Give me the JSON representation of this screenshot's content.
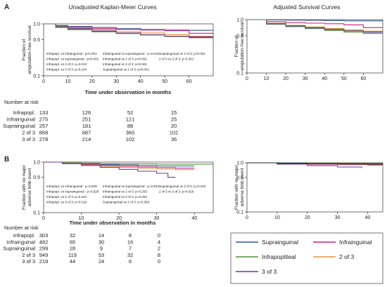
{
  "chart_data": [
    {
      "panel": "A",
      "type": "line",
      "title": "Unadjusted Kaplan-Meier Curves",
      "xlabel": "Time under observation in months",
      "ylabel": "Fraction of amputation-free survival",
      "xlim": [
        0,
        70
      ],
      "ylim": [
        0.1,
        1.0
      ],
      "yscale": "log",
      "xticks": [
        "0",
        "10",
        "20",
        "30",
        "40",
        "50",
        "60"
      ],
      "yticks": [
        "1.0",
        "0.5",
        "0.1"
      ],
      "series": [
        {
          "name": "Suprainguinal",
          "color": "#2f5597",
          "x": [
            0,
            5,
            10,
            20,
            30,
            40,
            50,
            60,
            70
          ],
          "y": [
            1.0,
            0.93,
            0.89,
            0.85,
            0.81,
            0.78,
            0.76,
            0.75,
            0.75
          ]
        },
        {
          "name": "Infrainguinal",
          "color": "#d0217a",
          "x": [
            0,
            5,
            10,
            20,
            30,
            40,
            50,
            60,
            70
          ],
          "y": [
            1.0,
            0.91,
            0.86,
            0.81,
            0.78,
            0.76,
            0.74,
            0.66,
            0.66
          ]
        },
        {
          "name": "Infrapopliteal",
          "color": "#4f8f3a",
          "x": [
            0,
            5,
            10,
            20,
            30,
            40,
            50,
            60,
            70
          ],
          "y": [
            1.0,
            0.85,
            0.77,
            0.7,
            0.65,
            0.61,
            0.58,
            0.55,
            0.55
          ]
        },
        {
          "name": "2 of 3",
          "color": "#e69138",
          "x": [
            0,
            5,
            10,
            20,
            30,
            40,
            50,
            60,
            70
          ],
          "y": [
            1.0,
            0.9,
            0.84,
            0.77,
            0.71,
            0.67,
            0.62,
            0.58,
            0.58
          ]
        },
        {
          "name": "3 of 3",
          "color": "#7030a0",
          "x": [
            0,
            5,
            10,
            20,
            30,
            40,
            50,
            60,
            70
          ],
          "y": [
            1.0,
            0.89,
            0.82,
            0.73,
            0.67,
            0.62,
            0.58,
            0.56,
            0.56
          ]
        },
        {
          "name": "",
          "color": "#666666",
          "x": [
            0,
            5,
            10,
            20,
            30,
            40,
            50,
            60,
            70
          ],
          "y": [
            1.0,
            0.88,
            0.8,
            0.72,
            0.66,
            0.61,
            0.57,
            0.54,
            0.52
          ]
        }
      ],
      "annotations": [
        "Infrapopl. vs infrainguinal : p<0.001",
        "Infrainguinal vs suprainguinal : p=0.010",
        "Suprainguinal vs 3 of 3: p<0.001",
        "Infrapopl. vs suprainguinal : p<0.001",
        "Infrainguinal vs 2 of 3: p<0.001",
        "2 of 3 vs 3 of 3: p=0.341",
        "Infrapopl. vs 2 of 3: p=0.013",
        "Infrainguinal vs 3 of 3: p<0.001",
        "Infrapopl. vs 3 of 3: p=0.244",
        "Suprainguinal vs 2 of 3: p<0.001"
      ],
      "at_risk": {
        "header": "Number at risk",
        "rows": [
          {
            "label": "Infrapopl.",
            "values": [
              "133",
              "126",
              "52",
              "15"
            ]
          },
          {
            "label": "Infrainguinal",
            "values": [
              "275",
              "251",
              "121",
              "25"
            ]
          },
          {
            "label": "Suprainguinal",
            "values": [
              "257",
              "181",
              "88",
              "20"
            ]
          },
          {
            "label": "2 of 3",
            "values": [
              "868",
              "687",
              "360",
              "102"
            ]
          },
          {
            "label": "3 of 3",
            "values": [
              "278",
              "214",
              "102",
              "36"
            ]
          }
        ]
      }
    },
    {
      "panel": "A-adjusted",
      "type": "line",
      "title": "Adjusted Survival Curves",
      "ylabel": "Fraction of amputation-free survival",
      "xlim": [
        0,
        70
      ],
      "ylim": [
        0.1,
        1.0
      ],
      "yscale": "log",
      "xticks": [
        "0",
        "10",
        "20",
        "30",
        "40",
        "50",
        "60"
      ],
      "yticks": [
        "1.0",
        "0.5",
        "0.1"
      ],
      "series": [
        {
          "name": "Suprainguinal",
          "color": "#2f5597",
          "x": [
            0,
            10,
            20,
            30,
            40,
            50,
            60,
            70
          ],
          "y": [
            1.0,
            0.99,
            0.98,
            0.97,
            0.96,
            0.95,
            0.95,
            0.94
          ]
        },
        {
          "name": "Infrainguinal",
          "color": "#d0217a",
          "x": [
            0,
            10,
            20,
            30,
            40,
            50,
            60,
            70
          ],
          "y": [
            1.0,
            0.92,
            0.88,
            0.86,
            0.84,
            0.8,
            0.71,
            0.71
          ]
        },
        {
          "name": "Infrapopliteal",
          "color": "#4f8f3a",
          "x": [
            0,
            10,
            20,
            30,
            40,
            50,
            60,
            70
          ],
          "y": [
            1.0,
            0.82,
            0.74,
            0.68,
            0.63,
            0.58,
            0.55,
            0.55
          ]
        },
        {
          "name": "2 of 3",
          "color": "#e69138",
          "x": [
            0,
            10,
            20,
            30,
            40,
            50,
            60,
            70
          ],
          "y": [
            1.0,
            0.86,
            0.78,
            0.73,
            0.68,
            0.64,
            0.61,
            0.61
          ]
        },
        {
          "name": "3 of 3",
          "color": "#7030a0",
          "x": [
            0,
            10,
            20,
            30,
            40,
            50,
            60,
            70
          ],
          "y": [
            1.0,
            0.84,
            0.76,
            0.7,
            0.65,
            0.61,
            0.58,
            0.58
          ]
        },
        {
          "name": "",
          "color": "#666666",
          "x": [
            0,
            10,
            20,
            30,
            40,
            50,
            60,
            70
          ],
          "y": [
            1.0,
            0.85,
            0.77,
            0.71,
            0.66,
            0.62,
            0.59,
            0.59
          ]
        }
      ]
    },
    {
      "panel": "B",
      "type": "line",
      "xlabel": "Time under observation in months",
      "ylabel": "Fraction with no major adverse limb event",
      "xlim": [
        0,
        45
      ],
      "ylim": [
        0.1,
        1.0
      ],
      "yscale": "log",
      "xticks": [
        "0",
        "10",
        "20",
        "30",
        "40"
      ],
      "yticks": [
        "1.0",
        "0.5",
        "0.1"
      ],
      "series": [
        {
          "name": "Suprainguinal",
          "color": "#2f5597",
          "x": [
            0,
            5,
            10,
            15,
            20,
            25,
            30,
            35,
            40
          ],
          "y": [
            1.0,
            0.97,
            0.93,
            0.9,
            0.88,
            0.85,
            0.84,
            0.84,
            0.84
          ]
        },
        {
          "name": "Infrainguinal",
          "color": "#d0217a",
          "x": [
            0,
            5,
            10,
            15,
            20,
            25,
            30,
            35,
            40
          ],
          "y": [
            1.0,
            0.95,
            0.9,
            0.86,
            0.83,
            0.8,
            0.78,
            0.76,
            0.76
          ]
        },
        {
          "name": "Infrapopliteal",
          "color": "#4f8f3a",
          "x": [
            0,
            5,
            10,
            15,
            20,
            25,
            30,
            35,
            45
          ],
          "y": [
            1.0,
            0.97,
            0.95,
            0.93,
            0.92,
            0.92,
            0.91,
            0.91,
            0.91
          ]
        },
        {
          "name": "2 of 3",
          "color": "#e69138",
          "x": [
            0,
            5,
            10,
            15,
            20,
            25,
            30,
            35,
            40
          ],
          "y": [
            1.0,
            0.94,
            0.88,
            0.83,
            0.79,
            0.76,
            0.73,
            0.71,
            0.71
          ]
        },
        {
          "name": "3 of 3",
          "color": "#7030a0",
          "x": [
            0,
            5,
            10,
            15,
            20,
            25,
            30,
            33,
            35
          ],
          "y": [
            1.0,
            0.93,
            0.86,
            0.79,
            0.72,
            0.66,
            0.6,
            0.5,
            0.5
          ]
        }
      ],
      "annotations": [
        "Infrapopl. vs infrainguinal : p=0.839",
        "Infrainguinal vs suprainguinal : p=0.944",
        "Suprainguinal vs 3 of 3: p=0.016",
        "Infrapopl. vs suprainguinal : p=0.928",
        "Infrainguinal vs 2 of 3: p=0.253",
        "2 of 3 vs 3 of 3: p=0.018",
        "Infrapopl. vs 2 of 3: p=0.323",
        "Infrainguinal vs 3 of 3: p=0.003",
        "Infrapopl. vs 3 of 3: p=0.019",
        "Suprainguinal vs 2 of 3: p=0.359"
      ],
      "at_risk": {
        "header": "Number at risk",
        "rows": [
          {
            "label": "Infrapopl.",
            "values": [
              "303",
              "32",
              "14",
              "8",
              "0"
            ]
          },
          {
            "label": "Infrainguinal",
            "values": [
              "482",
              "65",
              "30",
              "16",
              "4"
            ]
          },
          {
            "label": "Suprainguinal",
            "values": [
              "299",
              "28",
              "9",
              "7",
              "2"
            ]
          },
          {
            "label": "2 of 3",
            "values": [
              "949",
              "119",
              "53",
              "32",
              "8"
            ]
          },
          {
            "label": "3 of 3",
            "values": [
              "219",
              "44",
              "24",
              "6",
              "0"
            ]
          }
        ]
      }
    },
    {
      "panel": "B-adjusted",
      "type": "line",
      "ylabel": "Fraction with no major adverse limb event",
      "xlim": [
        0,
        45
      ],
      "ylim": [
        0.1,
        1.0
      ],
      "yscale": "log",
      "xticks": [
        "0",
        "10",
        "20",
        "30",
        "40"
      ],
      "yticks": [
        "1.0",
        "0.5",
        "0.1"
      ],
      "series": [
        {
          "name": "Suprainguinal",
          "color": "#2f5597",
          "x": [
            0,
            10,
            20,
            30,
            40,
            45
          ],
          "y": [
            1.0,
            0.99,
            0.97,
            0.96,
            0.95,
            0.95
          ]
        },
        {
          "name": "Infrainguinal",
          "color": "#d0217a",
          "x": [
            0,
            10,
            20,
            30,
            40,
            45
          ],
          "y": [
            1.0,
            0.97,
            0.94,
            0.92,
            0.9,
            0.9
          ]
        },
        {
          "name": "Infrapopliteal",
          "color": "#4f8f3a",
          "x": [
            0,
            10,
            20,
            30,
            40,
            45
          ],
          "y": [
            1.0,
            0.99,
            0.98,
            0.98,
            0.97,
            0.97
          ]
        },
        {
          "name": "2 of 3",
          "color": "#e69138",
          "x": [
            0,
            10,
            20,
            30,
            40,
            45
          ],
          "y": [
            1.0,
            0.98,
            0.96,
            0.94,
            0.93,
            0.93
          ]
        },
        {
          "name": "3 of 3",
          "color": "#7030a0",
          "x": [
            0,
            10,
            20,
            30,
            38
          ],
          "y": [
            1.0,
            0.94,
            0.88,
            0.82,
            0.78
          ]
        },
        {
          "name": "",
          "color": "#222222",
          "x": [
            0,
            10,
            20,
            30,
            40,
            45
          ],
          "y": [
            1.0,
            0.98,
            0.96,
            0.95,
            0.94,
            0.94
          ]
        }
      ]
    }
  ],
  "panel_labels": [
    "A",
    "B"
  ],
  "legend": [
    {
      "label": "Suprainguinal",
      "color": "#2f5597"
    },
    {
      "label": "Infrainguinal",
      "color": "#d0217a"
    },
    {
      "label": "Infrapopliteal",
      "color": "#4f8f3a"
    },
    {
      "label": "2 of 3",
      "color": "#e69138"
    },
    {
      "label": "3 of 3",
      "color": "#7030a0"
    }
  ]
}
